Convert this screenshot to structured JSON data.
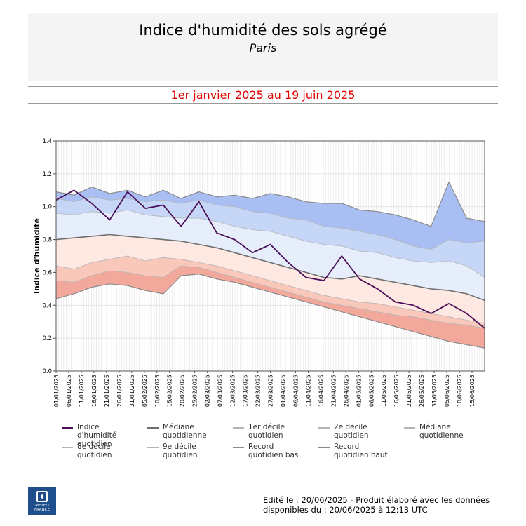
{
  "header": {
    "title": "Indice d'humidité des sols agrégé",
    "subtitle": "Paris",
    "period": "1er janvier 2025 au 19 juin 2025"
  },
  "colors": {
    "period": "#e00000",
    "index_line": "#4b0f58",
    "median_line": "#6e6e6e",
    "band_dark_blue": "#a9bff3",
    "band_mid_blue": "#c6d6f7",
    "band_light_blue": "#e6eefb",
    "band_light_red": "#fde8e2",
    "band_mid_red": "#f9c8bb",
    "band_dark_red": "#f3a89c"
  },
  "chart_data": {
    "type": "line",
    "xlabel": "",
    "ylabel": "Indice d'humidité",
    "ylim": [
      0,
      1.4
    ],
    "yticks": [
      "0.0",
      "0.2",
      "0.4",
      "0.6",
      "0.8",
      "1.0",
      "1.2",
      "1.4"
    ],
    "grid": true,
    "legend_position": "bottom",
    "x_tick_labels": [
      "01/01/2025",
      "06/01/2025",
      "11/01/2025",
      "16/01/2025",
      "21/01/2025",
      "26/01/2025",
      "31/01/2025",
      "05/02/2025",
      "10/02/2025",
      "15/02/2025",
      "20/02/2025",
      "25/02/2025",
      "02/03/2025",
      "07/03/2025",
      "12/03/2025",
      "17/03/2025",
      "22/03/2025",
      "27/03/2025",
      "01/04/2025",
      "06/04/2025",
      "11/04/2025",
      "16/04/2025",
      "21/04/2025",
      "26/04/2025",
      "01/05/2025",
      "06/05/2025",
      "11/05/2025",
      "16/05/2025",
      "21/05/2025",
      "26/05/2025",
      "31/05/2025",
      "05/06/2025",
      "10/06/2025",
      "15/06/2025"
    ],
    "x_dates": [
      "01/01",
      "08/01",
      "15/01",
      "22/01",
      "29/01",
      "05/02",
      "12/02",
      "19/02",
      "26/02",
      "05/03",
      "12/03",
      "19/03",
      "26/03",
      "02/04",
      "09/04",
      "16/04",
      "23/04",
      "30/04",
      "07/05",
      "14/05",
      "21/05",
      "28/05",
      "04/06",
      "11/06",
      "18/06"
    ],
    "series": [
      {
        "name": "Record quotidien haut",
        "values": [
          1.09,
          1.07,
          1.12,
          1.08,
          1.1,
          1.06,
          1.1,
          1.05,
          1.09,
          1.06,
          1.07,
          1.05,
          1.08,
          1.06,
          1.03,
          1.02,
          1.02,
          0.98,
          0.97,
          0.95,
          0.92,
          0.88,
          1.15,
          0.93,
          0.91
        ]
      },
      {
        "name": "9e décile quotidien",
        "values": [
          1.05,
          1.03,
          1.06,
          1.04,
          1.05,
          1.03,
          1.04,
          1.02,
          1.04,
          1.01,
          1.0,
          0.97,
          0.96,
          0.93,
          0.92,
          0.88,
          0.87,
          0.85,
          0.83,
          0.8,
          0.76,
          0.74,
          0.8,
          0.78,
          0.79
        ]
      },
      {
        "name": "8e décile quotidien",
        "values": [
          0.96,
          0.95,
          0.97,
          0.96,
          0.98,
          0.95,
          0.94,
          0.93,
          0.93,
          0.91,
          0.88,
          0.86,
          0.85,
          0.82,
          0.79,
          0.77,
          0.76,
          0.73,
          0.72,
          0.69,
          0.67,
          0.66,
          0.67,
          0.64,
          0.57
        ]
      },
      {
        "name": "Médiane quotidienne",
        "values": [
          0.8,
          0.81,
          0.82,
          0.83,
          0.82,
          0.81,
          0.8,
          0.79,
          0.77,
          0.75,
          0.72,
          0.69,
          0.66,
          0.63,
          0.6,
          0.57,
          0.56,
          0.58,
          0.56,
          0.54,
          0.52,
          0.5,
          0.49,
          0.47,
          0.43
        ]
      },
      {
        "name": "2e décile quotidien",
        "values": [
          0.64,
          0.62,
          0.66,
          0.68,
          0.7,
          0.67,
          0.69,
          0.68,
          0.66,
          0.64,
          0.61,
          0.58,
          0.55,
          0.52,
          0.49,
          0.46,
          0.44,
          0.42,
          0.41,
          0.39,
          0.37,
          0.35,
          0.33,
          0.31,
          0.29
        ]
      },
      {
        "name": "1er décile quotidien",
        "values": [
          0.55,
          0.54,
          0.58,
          0.61,
          0.6,
          0.58,
          0.57,
          0.64,
          0.63,
          0.6,
          0.57,
          0.54,
          0.51,
          0.48,
          0.45,
          0.42,
          0.4,
          0.38,
          0.36,
          0.34,
          0.33,
          0.31,
          0.29,
          0.28,
          0.26
        ]
      },
      {
        "name": "Record quotidien bas",
        "values": [
          0.44,
          0.47,
          0.51,
          0.53,
          0.52,
          0.49,
          0.47,
          0.58,
          0.59,
          0.56,
          0.54,
          0.51,
          0.48,
          0.45,
          0.42,
          0.39,
          0.36,
          0.33,
          0.3,
          0.27,
          0.24,
          0.21,
          0.18,
          0.16,
          0.14
        ]
      },
      {
        "name": "Indice d'humidité quotidien",
        "values": [
          1.04,
          1.1,
          1.02,
          0.92,
          1.09,
          0.99,
          1.01,
          0.88,
          1.03,
          0.84,
          0.8,
          0.72,
          0.77,
          0.66,
          0.57,
          0.55,
          0.7,
          0.56,
          0.5,
          0.42,
          0.4,
          0.35,
          0.41,
          0.35,
          0.26
        ]
      }
    ]
  },
  "legend": {
    "items": [
      {
        "label": "Indice d'humidité quotidien",
        "color": "#4b0f58"
      },
      {
        "label": "Médiane quotidienne",
        "color": "#6e6e6e"
      },
      {
        "label": "1er décile quotidien",
        "color": "#b4b4b4"
      },
      {
        "label": "2e décile quotidien",
        "color": "#b4b4b4"
      },
      {
        "label": "Médiane quotidienne",
        "color": "#b4b4b4"
      },
      {
        "label": "8e décile quotidien",
        "color": "#b4b4b4"
      },
      {
        "label": "9e décile quotidien",
        "color": "#b4b4b4"
      },
      {
        "label": "Record quotidien bas",
        "color": "#8a8a8a"
      },
      {
        "label": "Record quotidien haut",
        "color": "#8a8a8a"
      }
    ]
  },
  "logo": {
    "text": "METEO FRANCE"
  },
  "footer": {
    "line1": "Edité le : 20/06/2025 - Produit élaboré avec les données",
    "line2": "disponibles du : 20/06/2025 à 12:13 UTC"
  }
}
